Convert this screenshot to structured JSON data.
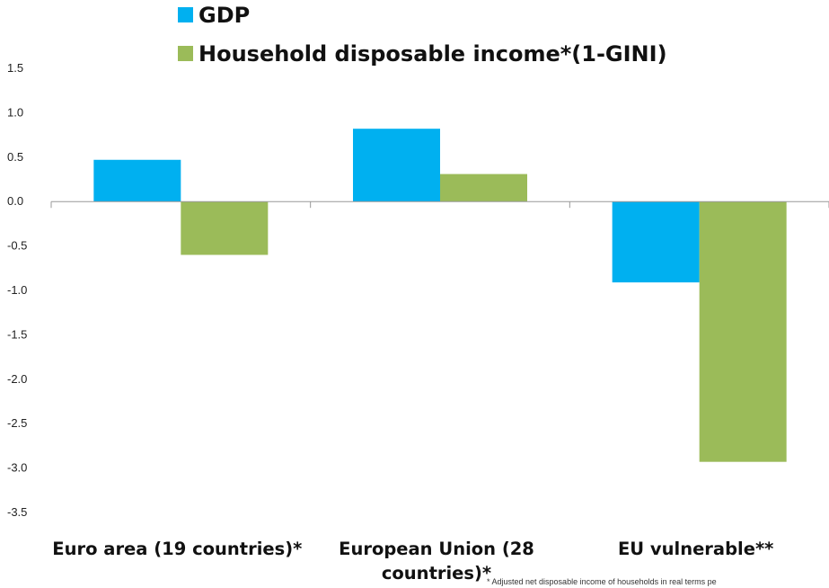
{
  "chart_data": {
    "type": "bar",
    "categories": [
      "Euro area (19 countries)*",
      "European Union (28 countries)*",
      "EU vulnerable**"
    ],
    "category_label_lines": [
      [
        "Euro area (19 countries)*"
      ],
      [
        "European Union (28",
        "countries)*"
      ],
      [
        "EU vulnerable**"
      ]
    ],
    "series": [
      {
        "name": "GDP",
        "color": "#00B0F0",
        "values": [
          0.47,
          0.82,
          -0.91
        ]
      },
      {
        "name": "Household disposable income*(1-GINI)",
        "color": "#9BBB59",
        "values": [
          -0.6,
          0.31,
          -2.93
        ]
      }
    ],
    "ylim": [
      -3.5,
      1.5
    ],
    "yticks": [
      "1.5",
      "1.0",
      "0.5",
      "0.0",
      "-0.5",
      "-1.0",
      "-1.5",
      "-2.0",
      "-2.5",
      "-3.0",
      "-3.5"
    ],
    "title": "",
    "xlabel": "",
    "ylabel": "",
    "legend_position": "top",
    "grid": false,
    "footnote": "* Adjusted net disposable income of households in real terms pe"
  }
}
